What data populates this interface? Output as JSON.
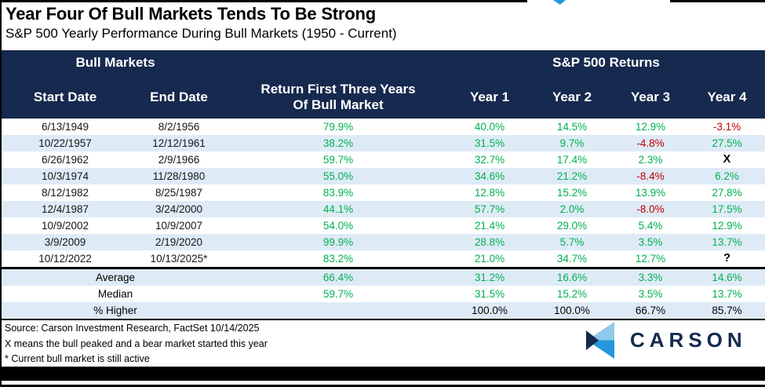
{
  "chart_data": {
    "type": "table",
    "title": "Year Four Of Bull Markets Tends To Be Strong",
    "subtitle": "S&P 500 Yearly Performance During Bull Markets (1950 - Current)",
    "group_headers": {
      "left": "Bull Markets",
      "right": "S&P 500 Returns"
    },
    "columns": {
      "start_date": "Start Date",
      "end_date": "End Date",
      "first_three_line1": "Return First Three Years",
      "first_three_line2": "Of Bull Market",
      "year1": "Year 1",
      "year2": "Year 2",
      "year3": "Year 3",
      "year4": "Year 4"
    },
    "rows": [
      {
        "start": "6/13/1949",
        "end": "8/2/1956",
        "first3": "79.9%",
        "y1": "40.0%",
        "y2": "14.5%",
        "y3": "12.9%",
        "y4": "-3.1%"
      },
      {
        "start": "10/22/1957",
        "end": "12/12/1961",
        "first3": "38.2%",
        "y1": "31.5%",
        "y2": "9.7%",
        "y3": "-4.8%",
        "y4": "27.5%"
      },
      {
        "start": "6/26/1962",
        "end": "2/9/1966",
        "first3": "59.7%",
        "y1": "32.7%",
        "y2": "17.4%",
        "y3": "2.3%",
        "y4": "X"
      },
      {
        "start": "10/3/1974",
        "end": "11/28/1980",
        "first3": "55.0%",
        "y1": "34.6%",
        "y2": "21.2%",
        "y3": "-8.4%",
        "y4": "6.2%"
      },
      {
        "start": "8/12/1982",
        "end": "8/25/1987",
        "first3": "83.9%",
        "y1": "12.8%",
        "y2": "15.2%",
        "y3": "13.9%",
        "y4": "27.8%"
      },
      {
        "start": "12/4/1987",
        "end": "3/24/2000",
        "first3": "44.1%",
        "y1": "57.7%",
        "y2": "2.0%",
        "y3": "-8.0%",
        "y4": "17.5%"
      },
      {
        "start": "10/9/2002",
        "end": "10/9/2007",
        "first3": "54.0%",
        "y1": "21.4%",
        "y2": "29.0%",
        "y3": "5.4%",
        "y4": "12.9%"
      },
      {
        "start": "3/9/2009",
        "end": "2/19/2020",
        "first3": "99.9%",
        "y1": "28.8%",
        "y2": "5.7%",
        "y3": "3.5%",
        "y4": "13.7%"
      },
      {
        "start": "10/12/2022",
        "end": "10/13/2025*",
        "first3": "83.2%",
        "y1": "21.0%",
        "y2": "34.7%",
        "y3": "12.7%",
        "y4": "?"
      }
    ],
    "summary": [
      {
        "label": "Average",
        "first3": "66.4%",
        "y1": "31.2%",
        "y2": "16.6%",
        "y3": "3.3%",
        "y4": "14.6%",
        "value_color": "green"
      },
      {
        "label": "Median",
        "first3": "59.7%",
        "y1": "31.5%",
        "y2": "15.2%",
        "y3": "3.5%",
        "y4": "13.7%",
        "value_color": "green"
      },
      {
        "label": "% Higher",
        "first3": "",
        "y1": "100.0%",
        "y2": "100.0%",
        "y3": "66.7%",
        "y4": "85.7%",
        "value_color": "black"
      }
    ]
  },
  "footnotes": {
    "source": "Source: Carson Investment Research, FactSet 10/14/2025",
    "x_note": "X means the bull peaked and a bear market started this year",
    "asterisk_note": "* Current bull market is still active"
  },
  "logo": {
    "text": "CARSON"
  },
  "colors": {
    "navy": "#16294E",
    "row-blue": "#DEEBF7",
    "green": "#00B050",
    "red": "#C00000",
    "logo-light": "#8FC9EC",
    "logo-mid": "#2397DB",
    "logo-navy": "#152A4E"
  }
}
